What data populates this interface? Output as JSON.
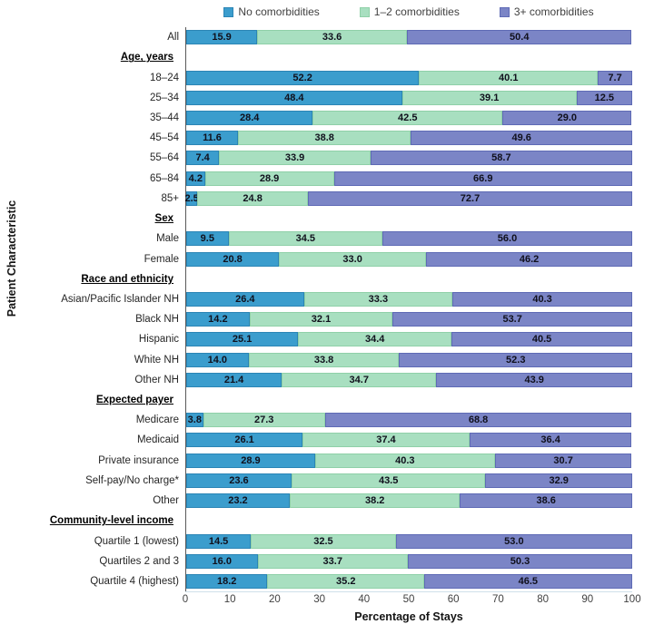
{
  "chart_data": {
    "type": "bar",
    "orientation": "horizontal",
    "stacked": true,
    "title": "",
    "xlabel": "Percentage of Stays",
    "ylabel": "Patient Characteristic",
    "xlim": [
      0,
      100
    ],
    "xticks": [
      0,
      10,
      20,
      30,
      40,
      50,
      60,
      70,
      80,
      90,
      100
    ],
    "legend_position": "top",
    "grid": false,
    "series": [
      {
        "name": "No comorbidities",
        "fill": "#3B9DCD",
        "border": "#2B85B5"
      },
      {
        "name": "1–2 comorbidities",
        "fill": "#A8DFC0",
        "border": "#8FD0A8"
      },
      {
        "name": "3+ comorbidities",
        "fill": "#7B85C6",
        "border": "#5E6AB5"
      }
    ],
    "rows": [
      {
        "type": "bar",
        "label": "All",
        "values": [
          15.9,
          33.6,
          50.4
        ]
      },
      {
        "type": "header",
        "label": "Age, years"
      },
      {
        "type": "bar",
        "label": "18–24",
        "values": [
          52.2,
          40.1,
          7.7
        ]
      },
      {
        "type": "bar",
        "label": "25–34",
        "values": [
          48.4,
          39.1,
          12.5
        ]
      },
      {
        "type": "bar",
        "label": "35–44",
        "values": [
          28.4,
          42.5,
          29.0
        ]
      },
      {
        "type": "bar",
        "label": "45–54",
        "values": [
          11.6,
          38.8,
          49.6
        ]
      },
      {
        "type": "bar",
        "label": "55–64",
        "values": [
          7.4,
          33.9,
          58.7
        ]
      },
      {
        "type": "bar",
        "label": "65–84",
        "values": [
          4.2,
          28.9,
          66.9
        ]
      },
      {
        "type": "bar",
        "label": "85+",
        "values": [
          2.5,
          24.8,
          72.7
        ]
      },
      {
        "type": "header",
        "label": "Sex"
      },
      {
        "type": "bar",
        "label": "Male",
        "values": [
          9.5,
          34.5,
          56.0
        ]
      },
      {
        "type": "bar",
        "label": "Female",
        "values": [
          20.8,
          33.0,
          46.2
        ]
      },
      {
        "type": "header",
        "label": "Race and ethnicity"
      },
      {
        "type": "bar",
        "label": "Asian/Pacific Islander NH",
        "values": [
          26.4,
          33.3,
          40.3
        ]
      },
      {
        "type": "bar",
        "label": "Black NH",
        "values": [
          14.2,
          32.1,
          53.7
        ]
      },
      {
        "type": "bar",
        "label": "Hispanic",
        "values": [
          25.1,
          34.4,
          40.5
        ]
      },
      {
        "type": "bar",
        "label": "White NH",
        "values": [
          14.0,
          33.8,
          52.3
        ]
      },
      {
        "type": "bar",
        "label": "Other NH",
        "values": [
          21.4,
          34.7,
          43.9
        ]
      },
      {
        "type": "header",
        "label": "Expected payer"
      },
      {
        "type": "bar",
        "label": "Medicare",
        "values": [
          3.8,
          27.3,
          68.8
        ]
      },
      {
        "type": "bar",
        "label": "Medicaid",
        "values": [
          26.1,
          37.4,
          36.4
        ]
      },
      {
        "type": "bar",
        "label": "Private insurance",
        "values": [
          28.9,
          40.3,
          30.7
        ]
      },
      {
        "type": "bar",
        "label": "Self-pay/No charge*",
        "values": [
          23.6,
          43.5,
          32.9
        ]
      },
      {
        "type": "bar",
        "label": "Other",
        "values": [
          23.2,
          38.2,
          38.6
        ]
      },
      {
        "type": "header",
        "label": "Community-level income"
      },
      {
        "type": "bar",
        "label": "Quartile 1 (lowest)",
        "values": [
          14.5,
          32.5,
          53.0
        ]
      },
      {
        "type": "bar",
        "label": "Quartiles 2 and 3",
        "values": [
          16.0,
          33.7,
          50.3
        ]
      },
      {
        "type": "bar",
        "label": "Quartile 4 (highest)",
        "values": [
          18.2,
          35.2,
          46.5
        ]
      }
    ]
  }
}
